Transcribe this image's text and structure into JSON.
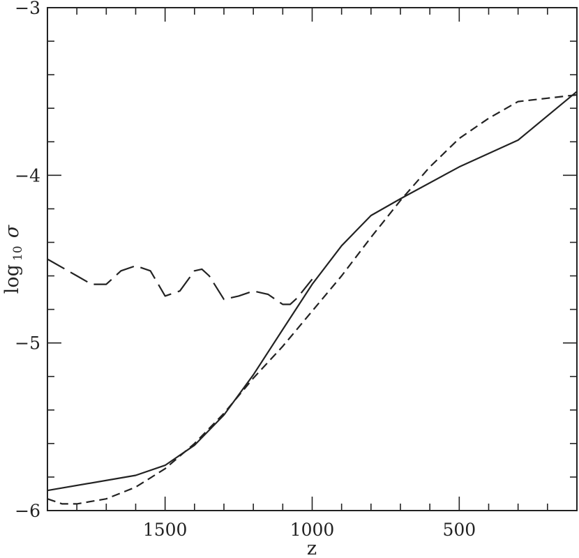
{
  "chart_data": {
    "type": "line",
    "xlabel": "z",
    "ylabel_main": "log",
    "ylabel_sub": "10",
    "ylabel_symbol": "σ",
    "xlim": [
      1900,
      100
    ],
    "ylim": [
      -6,
      -3
    ],
    "x_major_ticks": [
      1500,
      1000,
      500
    ],
    "x_tick_labels": [
      "1500",
      "1000",
      "500"
    ],
    "x_minor_step": 100,
    "y_major_ticks": [
      -6,
      -5,
      -4,
      -3
    ],
    "y_tick_labels": [
      "−6",
      "−5",
      "−4",
      "−3"
    ],
    "y_minor_step": 0.2,
    "grid": false,
    "legend": "none",
    "series": [
      {
        "style": "solid",
        "x": [
          1900,
          1600,
          1500,
          1400,
          1300,
          1200,
          1100,
          1000,
          900,
          800,
          700,
          500,
          300,
          100
        ],
        "y": [
          -5.88,
          -5.79,
          -5.73,
          -5.61,
          -5.43,
          -5.19,
          -4.92,
          -4.65,
          -4.42,
          -4.24,
          -4.14,
          -3.95,
          -3.79,
          -3.5
        ]
      },
      {
        "style": "dashed",
        "x": [
          1900,
          1850,
          1800,
          1700,
          1600,
          1500,
          1400,
          1300,
          1200,
          1100,
          1000,
          900,
          800,
          700,
          600,
          500,
          400,
          300,
          200,
          100
        ],
        "y": [
          -5.93,
          -5.96,
          -5.96,
          -5.93,
          -5.86,
          -5.75,
          -5.6,
          -5.42,
          -5.21,
          -5.02,
          -4.81,
          -4.6,
          -4.37,
          -4.15,
          -3.95,
          -3.78,
          -3.66,
          -3.56,
          -3.54,
          -3.52
        ]
      },
      {
        "style": "long-dashed",
        "x": [
          1900,
          1800,
          1750,
          1700,
          1650,
          1600,
          1550,
          1500,
          1450,
          1400,
          1375,
          1350,
          1300,
          1250,
          1200,
          1150,
          1100,
          1075,
          1050,
          1000
        ],
        "y": [
          -4.5,
          -4.6,
          -4.65,
          -4.65,
          -4.57,
          -4.54,
          -4.57,
          -4.72,
          -4.69,
          -4.57,
          -4.56,
          -4.6,
          -4.74,
          -4.72,
          -4.69,
          -4.71,
          -4.77,
          -4.77,
          -4.73,
          -4.62
        ]
      }
    ]
  }
}
